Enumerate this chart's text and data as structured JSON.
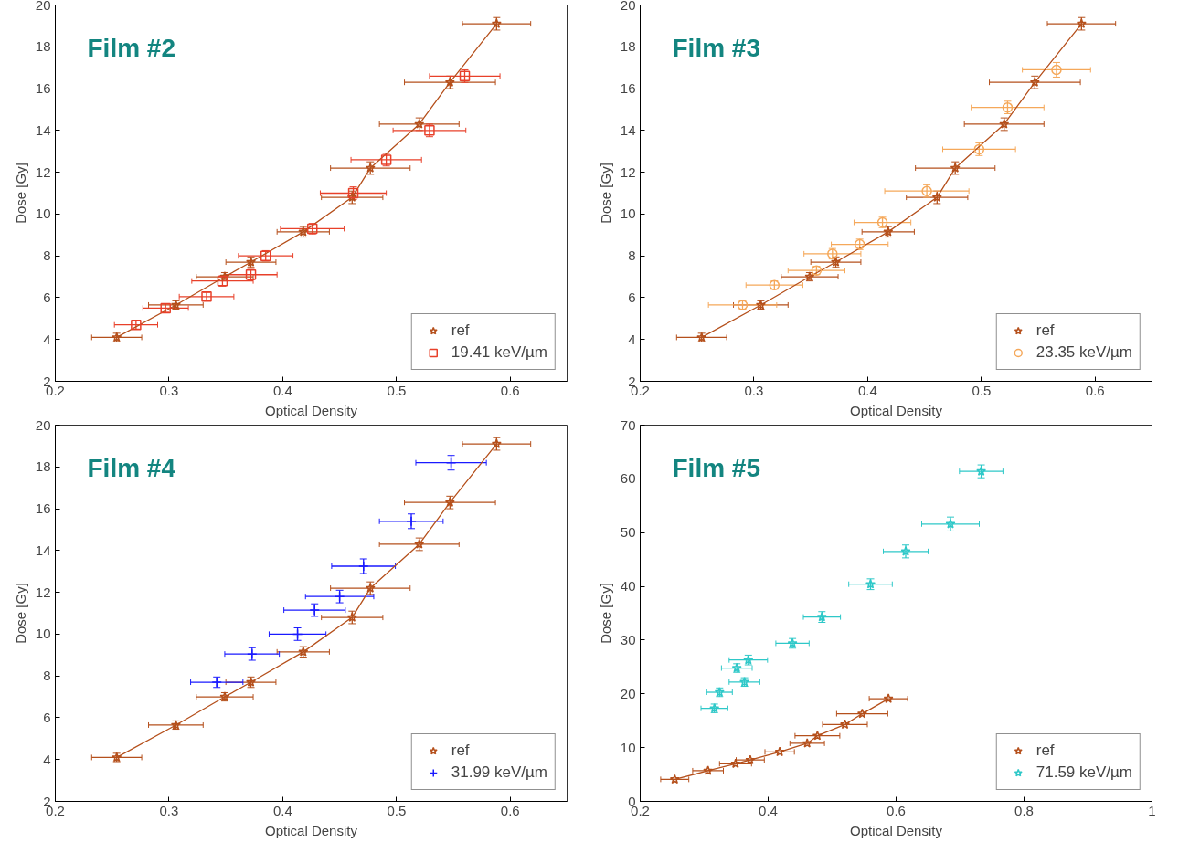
{
  "chart_data": [
    {
      "type": "scatter",
      "title": "Film #2",
      "xlabel": "Optical Density",
      "ylabel": "Dose [Gy]",
      "xlim": [
        0.2,
        0.65
      ],
      "ylim": [
        2,
        20
      ],
      "xticks": [
        0.2,
        0.3,
        0.4,
        0.5,
        0.6
      ],
      "yticks": [
        2,
        4,
        6,
        8,
        10,
        12,
        14,
        16,
        18,
        20
      ],
      "grid": false,
      "legend": "bottom right",
      "series": [
        {
          "name": "ref",
          "type": "line",
          "marker": "star",
          "color": "#b5501c",
          "x": [
            0.254,
            0.306,
            0.349,
            0.372,
            0.418,
            0.461,
            0.477,
            0.52,
            0.547,
            0.588
          ],
          "values": [
            4.1,
            5.65,
            7.0,
            7.7,
            9.15,
            10.8,
            12.2,
            14.3,
            16.3,
            19.1
          ],
          "xerrors": [
            0.022,
            0.024,
            0.025,
            0.022,
            0.023,
            0.027,
            0.035,
            0.035,
            0.04,
            0.03
          ],
          "errors": [
            0.2,
            0.2,
            0.2,
            0.25,
            0.25,
            0.3,
            0.3,
            0.3,
            0.3,
            0.3
          ]
        },
        {
          "name": "19.41 keV/µm",
          "type": "scatter",
          "marker": "square",
          "color": "#e8402a",
          "x": [
            0.271,
            0.297,
            0.333,
            0.347,
            0.372,
            0.385,
            0.426,
            0.462,
            0.491,
            0.529,
            0.56
          ],
          "values": [
            4.7,
            5.5,
            6.05,
            6.8,
            7.1,
            8.0,
            9.3,
            11.0,
            12.6,
            14.0,
            16.6
          ],
          "xerrors": [
            0.019,
            0.02,
            0.024,
            0.027,
            0.023,
            0.024,
            0.028,
            0.029,
            0.031,
            0.032,
            0.031
          ],
          "errors": [
            0.2,
            0.2,
            0.2,
            0.25,
            0.25,
            0.25,
            0.25,
            0.3,
            0.3,
            0.3,
            0.3
          ]
        }
      ]
    },
    {
      "type": "scatter",
      "title": "Film #3",
      "xlabel": "Optical Density",
      "ylabel": "Dose [Gy]",
      "xlim": [
        0.2,
        0.65
      ],
      "ylim": [
        2,
        20
      ],
      "xticks": [
        0.2,
        0.3,
        0.4,
        0.5,
        0.6
      ],
      "yticks": [
        2,
        4,
        6,
        8,
        10,
        12,
        14,
        16,
        18,
        20
      ],
      "grid": false,
      "legend": "bottom right",
      "series": [
        {
          "name": "ref",
          "type": "line",
          "marker": "star",
          "color": "#b5501c",
          "x": [
            0.254,
            0.306,
            0.349,
            0.372,
            0.418,
            0.461,
            0.477,
            0.52,
            0.547,
            0.588
          ],
          "values": [
            4.1,
            5.65,
            7.0,
            7.7,
            9.15,
            10.8,
            12.2,
            14.3,
            16.3,
            19.1
          ],
          "xerrors": [
            0.022,
            0.024,
            0.025,
            0.022,
            0.023,
            0.027,
            0.035,
            0.035,
            0.04,
            0.03
          ],
          "errors": [
            0.2,
            0.2,
            0.2,
            0.25,
            0.25,
            0.3,
            0.3,
            0.3,
            0.3,
            0.3
          ]
        },
        {
          "name": "23.35 keV/µm",
          "type": "scatter",
          "marker": "circle",
          "color": "#f5a85a",
          "x": [
            0.29,
            0.318,
            0.355,
            0.369,
            0.393,
            0.413,
            0.452,
            0.498,
            0.523,
            0.566
          ],
          "values": [
            5.65,
            6.6,
            7.3,
            8.1,
            8.55,
            9.6,
            11.1,
            13.1,
            15.1,
            16.9
          ],
          "xerrors": [
            0.03,
            0.025,
            0.025,
            0.025,
            0.025,
            0.025,
            0.037,
            0.032,
            0.032,
            0.03
          ],
          "errors": [
            0.2,
            0.2,
            0.2,
            0.25,
            0.25,
            0.25,
            0.3,
            0.3,
            0.3,
            0.35
          ]
        }
      ]
    },
    {
      "type": "scatter",
      "title": "Film #4",
      "xlabel": "Optical Density",
      "ylabel": "Dose [Gy]",
      "xlim": [
        0.2,
        0.65
      ],
      "ylim": [
        2,
        20
      ],
      "xticks": [
        0.2,
        0.3,
        0.4,
        0.5,
        0.6
      ],
      "yticks": [
        2,
        4,
        6,
        8,
        10,
        12,
        14,
        16,
        18,
        20
      ],
      "grid": false,
      "legend": "bottom right",
      "series": [
        {
          "name": "ref",
          "type": "line",
          "marker": "star",
          "color": "#b5501c",
          "x": [
            0.254,
            0.306,
            0.349,
            0.372,
            0.418,
            0.461,
            0.477,
            0.52,
            0.547,
            0.588
          ],
          "values": [
            4.1,
            5.65,
            7.0,
            7.7,
            9.15,
            10.8,
            12.2,
            14.3,
            16.3,
            19.1
          ],
          "xerrors": [
            0.022,
            0.024,
            0.025,
            0.022,
            0.023,
            0.027,
            0.035,
            0.035,
            0.04,
            0.03
          ],
          "errors": [
            0.2,
            0.2,
            0.2,
            0.25,
            0.25,
            0.3,
            0.3,
            0.3,
            0.3,
            0.3
          ]
        },
        {
          "name": "31.99 keV/µm",
          "type": "scatter",
          "marker": "cross",
          "color": "#1a1aff",
          "x": [
            0.342,
            0.373,
            0.413,
            0.428,
            0.45,
            0.471,
            0.513,
            0.548
          ],
          "values": [
            7.7,
            9.05,
            10.0,
            11.15,
            11.8,
            13.25,
            15.4,
            18.2
          ],
          "xerrors": [
            0.023,
            0.024,
            0.025,
            0.027,
            0.03,
            0.028,
            0.028,
            0.031
          ],
          "errors": [
            0.25,
            0.3,
            0.3,
            0.3,
            0.3,
            0.35,
            0.35,
            0.35
          ]
        }
      ]
    },
    {
      "type": "scatter",
      "title": "Film #5",
      "xlabel": "Optical Density",
      "ylabel": "Dose [Gy]",
      "xlim": [
        0.2,
        1
      ],
      "ylim": [
        0,
        70
      ],
      "xticks": [
        0.2,
        0.4,
        0.6,
        0.8,
        1
      ],
      "yticks": [
        0,
        10,
        20,
        30,
        40,
        50,
        60,
        70
      ],
      "grid": false,
      "legend": "bottom right",
      "series": [
        {
          "name": "ref",
          "type": "line",
          "marker": "star",
          "color": "#b5501c",
          "x": [
            0.254,
            0.306,
            0.349,
            0.372,
            0.418,
            0.461,
            0.477,
            0.52,
            0.547,
            0.588
          ],
          "values": [
            4.1,
            5.7,
            7.0,
            7.7,
            9.2,
            10.8,
            12.2,
            14.3,
            16.3,
            19.1
          ],
          "xerrors": [
            0.022,
            0.024,
            0.025,
            0.022,
            0.023,
            0.027,
            0.035,
            0.035,
            0.04,
            0.03
          ]
        },
        {
          "name": "71.59 keV/µm",
          "type": "scatter",
          "marker": "star",
          "color": "#2ec8c8",
          "x": [
            0.316,
            0.324,
            0.363,
            0.351,
            0.369,
            0.438,
            0.484,
            0.56,
            0.615,
            0.685,
            0.733
          ],
          "values": [
            17.3,
            20.3,
            22.2,
            24.8,
            26.3,
            29.4,
            34.3,
            40.4,
            46.5,
            51.6,
            61.4
          ],
          "xerrors": [
            0.021,
            0.02,
            0.024,
            0.024,
            0.03,
            0.026,
            0.029,
            0.034,
            0.035,
            0.045,
            0.034
          ],
          "errors": [
            0.8,
            0.8,
            0.8,
            0.8,
            0.9,
            0.9,
            1,
            1,
            1.2,
            1.3,
            1.2
          ]
        }
      ]
    }
  ]
}
